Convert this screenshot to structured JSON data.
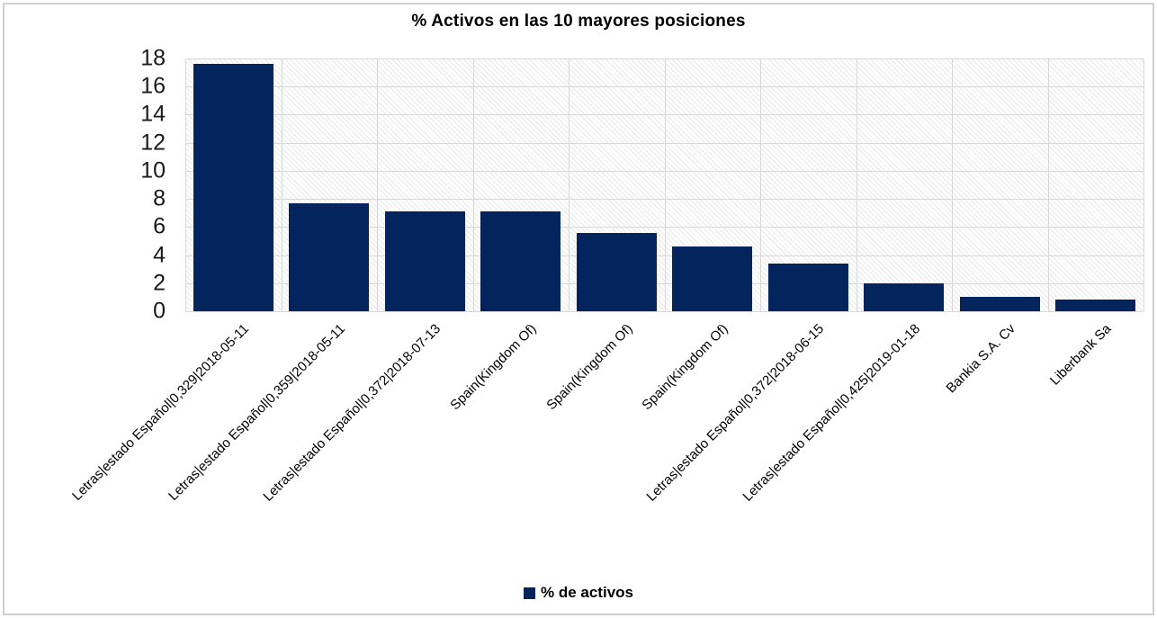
{
  "chart_data": {
    "type": "bar",
    "title": "% Activos en las 10 mayores posiciones",
    "categories": [
      "Letras|estado Español|0,329|2018-05-11",
      "Letras|estado Español|0,359|2018-05-11",
      "Letras|estado Español|0,372|2018-07-13",
      "Spain(Kingdom Of)",
      "Spain(Kingdom Of)",
      "Spain(Kingdom Of)",
      "Letras|estado Español|0,372|2018-06-15",
      "Letras|estado Español|0,425|2019-01-18",
      "Bankia S.A. Cv",
      "Liberbank Sa"
    ],
    "values": [
      17.6,
      7.7,
      7.1,
      7.1,
      5.6,
      4.6,
      3.4,
      2.0,
      1.0,
      0.85
    ],
    "xlabel": "",
    "ylabel": "",
    "ylim": [
      0,
      18
    ],
    "yticks": [
      0,
      2,
      4,
      6,
      8,
      10,
      12,
      14,
      16,
      18
    ],
    "grid": true,
    "plot_background": "hatched-diagonal",
    "bar_color": "#04245e",
    "gridline_color": "#d8d8d8",
    "legend_position": "bottom",
    "legend": [
      {
        "label": "% de activos",
        "color": "#04245e"
      }
    ]
  }
}
